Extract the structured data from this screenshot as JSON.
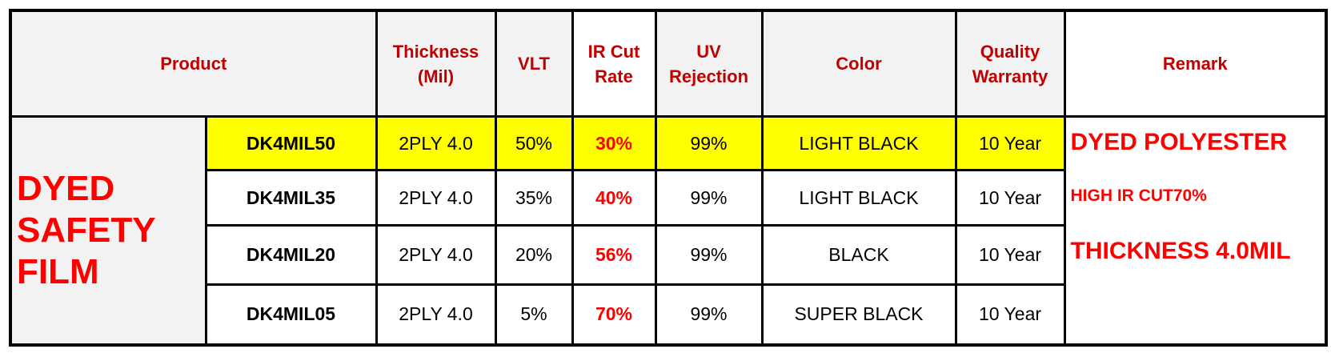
{
  "table": {
    "header": [
      "Product",
      "Thickness (Mil)",
      "VLT",
      "IR Cut Rate",
      "UV Rejection",
      "Color",
      "Quality Warranty",
      "Remark"
    ],
    "group": "DYED SAFETY FILM",
    "rows": [
      [
        "DK4MIL50",
        "2PLY 4.0",
        "50%",
        "30%",
        "99%",
        "LIGHT BLACK",
        "10 Year"
      ],
      [
        "DK4MIL35",
        "2PLY 4.0",
        "35%",
        "40%",
        "99%",
        "LIGHT BLACK",
        "10 Year"
      ],
      [
        "DK4MIL20",
        "2PLY 4.0",
        "20%",
        "56%",
        "99%",
        "BLACK",
        "10 Year"
      ],
      [
        "DK4MIL05",
        "2PLY 4.0",
        "5%",
        "70%",
        "99%",
        "SUPER BLACK",
        "10 Year"
      ]
    ],
    "remarks": [
      "DYED POLYESTER",
      "HIGH IR CUT70%",
      "THICKNESS 4.0MIL"
    ]
  }
}
